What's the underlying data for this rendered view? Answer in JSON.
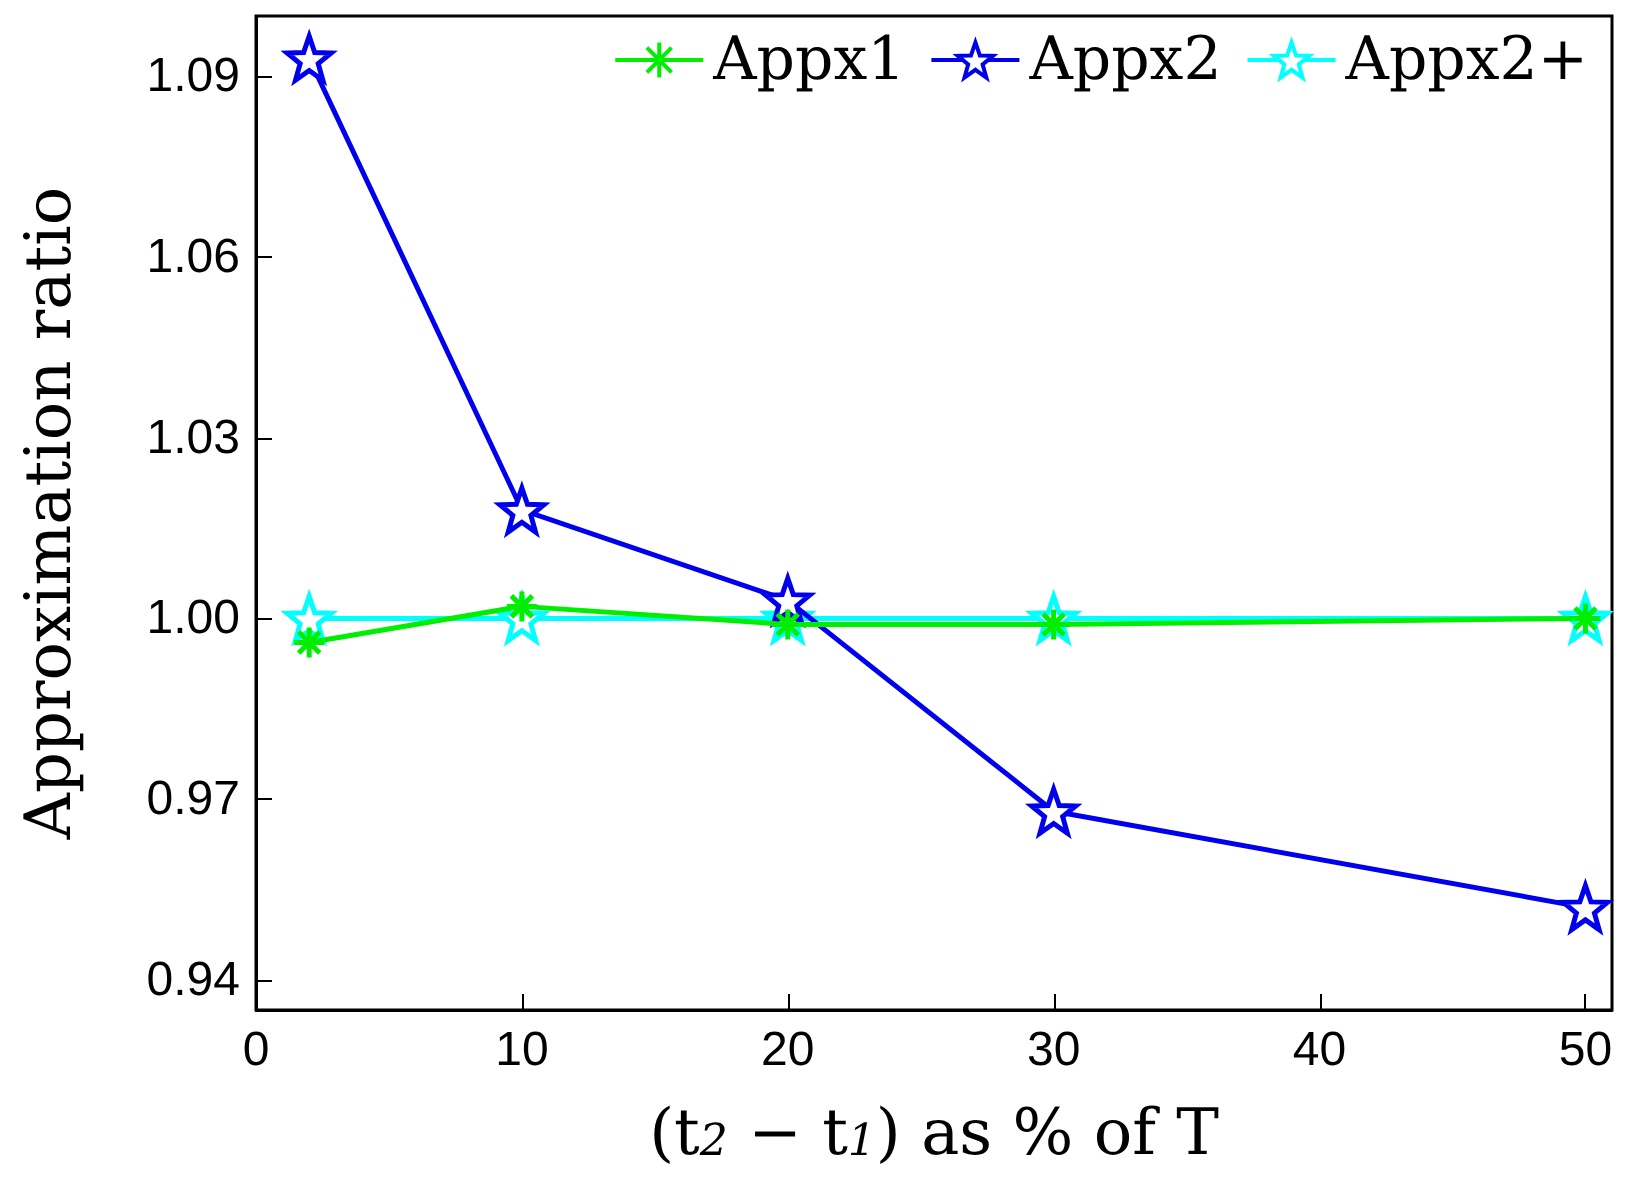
{
  "chart_data": {
    "type": "line",
    "xlabel": "(t$_{2}$ − t$_{1}$) as % of T",
    "ylabel": "Approximation ratio",
    "x": [
      2,
      10,
      20,
      30,
      50
    ],
    "series": [
      {
        "name": "Appx1",
        "color": "#00ee00",
        "marker": "cross",
        "values": [
          0.996,
          1.002,
          0.999,
          0.999,
          1.0
        ]
      },
      {
        "name": "Appx2",
        "color": "#0000ee",
        "marker": "star",
        "values": [
          1.093,
          1.018,
          1.003,
          0.968,
          0.952
        ]
      },
      {
        "name": "Appx2+",
        "color": "#00ffff",
        "marker": "star",
        "values": [
          1.0,
          1.0,
          1.0,
          1.0,
          1.0
        ]
      }
    ],
    "xlim": [
      0,
      51
    ],
    "xticks": [
      0,
      10,
      20,
      30,
      40,
      50
    ],
    "ylim": [
      0.935,
      1.1
    ],
    "yticks": [
      {
        "value": 0.94,
        "label": "0.94"
      },
      {
        "value": 0.97,
        "label": "0.97"
      },
      {
        "value": 1.0,
        "label": "1.00"
      },
      {
        "value": 1.03,
        "label": "1.03"
      },
      {
        "value": 1.06,
        "label": "1.06"
      },
      {
        "value": 1.09,
        "label": "1.09"
      }
    ],
    "grid": false,
    "legend": "top",
    "line_style": "solid"
  }
}
